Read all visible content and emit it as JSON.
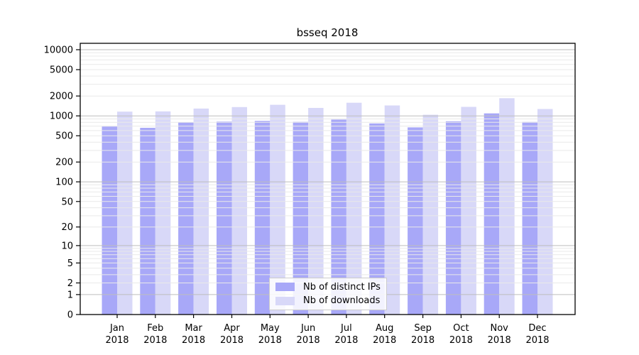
{
  "chart_data": {
    "type": "bar",
    "title": "bsseq 2018",
    "categories": [
      "Jan",
      "Feb",
      "Mar",
      "Apr",
      "May",
      "Jun",
      "Jul",
      "Aug",
      "Sep",
      "Oct",
      "Nov",
      "Dec"
    ],
    "category_year": "2018",
    "series": [
      {
        "name": "Nb of distinct IPs",
        "color": "#a8a8f8",
        "values": [
          690,
          660,
          800,
          820,
          840,
          815,
          880,
          770,
          670,
          830,
          1090,
          810
        ]
      },
      {
        "name": "Nb of downloads",
        "color": "#d8d8f8",
        "values": [
          1160,
          1170,
          1290,
          1360,
          1470,
          1320,
          1580,
          1440,
          1040,
          1370,
          1850,
          1270
        ]
      }
    ],
    "y_ticks": [
      0,
      1,
      2,
      5,
      10,
      20,
      50,
      100,
      200,
      500,
      1000,
      2000,
      5000,
      10000
    ],
    "y_scale": "log10(v+1)",
    "ylim": [
      0,
      10000
    ],
    "grid": {
      "show": true,
      "major_color": "#bdbdbd",
      "minor_color": "#e9e9e9"
    },
    "axis_color": "#000000",
    "legend_position": "bottom-center-inside"
  }
}
